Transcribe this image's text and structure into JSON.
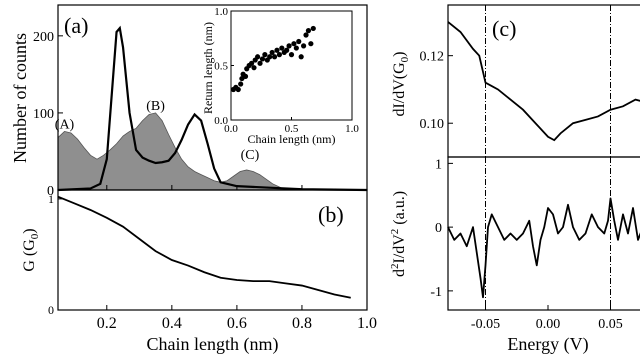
{
  "chart_data": [
    {
      "id": "a",
      "type": "area",
      "panel_label": "(a)",
      "ylabel": "Number of counts",
      "xlim": [
        0.05,
        1.0
      ],
      "ylim": [
        0,
        240
      ],
      "xticks": [
        0.2,
        0.4,
        0.6,
        0.8,
        1.0
      ],
      "yticks": [
        0,
        100,
        200
      ],
      "peak_labels": [
        {
          "text": "(A)",
          "x": 0.07,
          "y": 80
        },
        {
          "text": "(B)",
          "x": 0.35,
          "y": 104
        },
        {
          "text": "(C)",
          "x": 0.64,
          "y": 40
        }
      ],
      "series": [
        {
          "style": "filled-gray",
          "x": [
            0.05,
            0.07,
            0.09,
            0.11,
            0.13,
            0.15,
            0.17,
            0.19,
            0.21,
            0.23,
            0.25,
            0.27,
            0.29,
            0.31,
            0.33,
            0.35,
            0.37,
            0.39,
            0.41,
            0.43,
            0.45,
            0.47,
            0.49,
            0.51,
            0.53,
            0.55,
            0.57,
            0.59,
            0.61,
            0.63,
            0.65,
            0.67,
            0.69,
            0.71,
            0.73,
            0.75
          ],
          "values": [
            68,
            76,
            74,
            66,
            55,
            45,
            40,
            45,
            52,
            60,
            70,
            76,
            80,
            90,
            98,
            100,
            90,
            72,
            55,
            40,
            30,
            24,
            20,
            16,
            12,
            10,
            12,
            18,
            24,
            26,
            24,
            20,
            14,
            8,
            4,
            0
          ]
        },
        {
          "style": "black-line",
          "x": [
            0.05,
            0.1,
            0.15,
            0.18,
            0.2,
            0.22,
            0.23,
            0.24,
            0.25,
            0.27,
            0.29,
            0.31,
            0.33,
            0.35,
            0.37,
            0.39,
            0.41,
            0.43,
            0.45,
            0.47,
            0.49,
            0.51,
            0.53,
            0.55,
            0.6,
            0.7,
            0.8,
            1.0
          ],
          "values": [
            0,
            1,
            2,
            8,
            40,
            150,
            205,
            210,
            185,
            100,
            52,
            42,
            38,
            35,
            36,
            38,
            48,
            65,
            85,
            98,
            90,
            60,
            28,
            10,
            5,
            3,
            1,
            0
          ]
        }
      ]
    },
    {
      "id": "a-inset",
      "type": "scatter",
      "xlabel": "Chain length (nm)",
      "ylabel": "Return length (nm)",
      "xlim": [
        0,
        1.0
      ],
      "ylim": [
        0,
        1.0
      ],
      "xticks": [
        0.0,
        0.5,
        1.0
      ],
      "yticks": [
        0.0,
        0.5,
        1.0
      ],
      "x": [
        0.02,
        0.04,
        0.06,
        0.08,
        0.09,
        0.1,
        0.12,
        0.13,
        0.15,
        0.17,
        0.19,
        0.2,
        0.22,
        0.24,
        0.26,
        0.28,
        0.3,
        0.32,
        0.34,
        0.36,
        0.38,
        0.4,
        0.42,
        0.44,
        0.46,
        0.48,
        0.5,
        0.52,
        0.54,
        0.56,
        0.58,
        0.6,
        0.62,
        0.64,
        0.66,
        0.68
      ],
      "y": [
        0.28,
        0.3,
        0.28,
        0.33,
        0.38,
        0.42,
        0.4,
        0.47,
        0.5,
        0.52,
        0.48,
        0.55,
        0.58,
        0.52,
        0.56,
        0.6,
        0.55,
        0.58,
        0.62,
        0.58,
        0.64,
        0.6,
        0.66,
        0.62,
        0.64,
        0.68,
        0.6,
        0.7,
        0.66,
        0.72,
        0.58,
        0.68,
        0.78,
        0.82,
        0.7,
        0.84
      ]
    },
    {
      "id": "b",
      "type": "line",
      "panel_label": "(b)",
      "xlabel": "Chain length (nm)",
      "ylabel_main": "G (G",
      "ylabel_sub": "0",
      "ylabel_end": ")",
      "xlim": [
        0.05,
        1.0
      ],
      "ylim": [
        0,
        1.08
      ],
      "yticks": [
        0,
        1
      ],
      "x": [
        0.05,
        0.1,
        0.15,
        0.2,
        0.25,
        0.3,
        0.35,
        0.4,
        0.45,
        0.5,
        0.55,
        0.6,
        0.65,
        0.7,
        0.75,
        0.8,
        0.85,
        0.9,
        0.95
      ],
      "values": [
        1.02,
        0.96,
        0.9,
        0.83,
        0.75,
        0.64,
        0.53,
        0.45,
        0.4,
        0.34,
        0.29,
        0.27,
        0.26,
        0.26,
        0.24,
        0.22,
        0.18,
        0.14,
        0.11
      ]
    },
    {
      "id": "c-top",
      "type": "line",
      "panel_label": "(c)",
      "ylabel_main": "dI/dV(G",
      "ylabel_sub": "0",
      "ylabel_end": ")",
      "xlim": [
        -0.08,
        0.08
      ],
      "ylim": [
        0.09,
        0.135
      ],
      "yticks": [
        0.1,
        0.12
      ],
      "vlines": [
        -0.05,
        0.05
      ],
      "x": [
        -0.08,
        -0.07,
        -0.06,
        -0.055,
        -0.05,
        -0.045,
        -0.04,
        -0.03,
        -0.02,
        -0.01,
        0.0,
        0.005,
        0.01,
        0.02,
        0.03,
        0.04,
        0.05,
        0.06,
        0.07,
        0.08
      ],
      "values": [
        0.13,
        0.127,
        0.122,
        0.12,
        0.112,
        0.111,
        0.11,
        0.107,
        0.104,
        0.1,
        0.096,
        0.095,
        0.097,
        0.1,
        0.101,
        0.102,
        0.104,
        0.105,
        0.107,
        0.106
      ]
    },
    {
      "id": "c-bottom",
      "type": "line",
      "xlabel": "Energy (V)",
      "ylabel_main": "d",
      "ylabel_sup1": "2",
      "ylabel_mid": "I/dV",
      "ylabel_sup2": "2",
      "ylabel_end": " (a.u.)",
      "xlim": [
        -0.08,
        0.08
      ],
      "ylim": [
        -1.3,
        1.1
      ],
      "yticks": [
        -1,
        0,
        1
      ],
      "xticks": [
        -0.05,
        0.0,
        0.05
      ],
      "xtick_labels": [
        "-0.05",
        "0.00",
        "0.05"
      ],
      "vlines": [
        -0.05,
        0.05
      ],
      "x": [
        -0.08,
        -0.075,
        -0.07,
        -0.065,
        -0.06,
        -0.057,
        -0.054,
        -0.052,
        -0.05,
        -0.048,
        -0.045,
        -0.04,
        -0.035,
        -0.03,
        -0.025,
        -0.02,
        -0.015,
        -0.012,
        -0.009,
        -0.006,
        -0.003,
        0.0,
        0.004,
        0.008,
        0.012,
        0.016,
        0.02,
        0.025,
        0.03,
        0.035,
        0.04,
        0.045,
        0.048,
        0.05,
        0.053,
        0.056,
        0.06,
        0.064,
        0.068,
        0.072,
        0.076,
        0.08
      ],
      "values": [
        0.0,
        -0.2,
        -0.1,
        -0.3,
        0.0,
        -0.4,
        -0.8,
        -1.1,
        -0.6,
        0.0,
        0.2,
        0.0,
        -0.2,
        -0.1,
        -0.2,
        -0.1,
        0.1,
        -0.3,
        -0.6,
        -0.2,
        0.0,
        0.3,
        0.2,
        -0.1,
        0.0,
        0.35,
        0.0,
        -0.2,
        -0.1,
        0.2,
        0.0,
        -0.1,
        0.1,
        0.45,
        0.1,
        -0.2,
        0.2,
        -0.1,
        0.3,
        -0.2,
        0.0,
        0.0
      ]
    }
  ]
}
